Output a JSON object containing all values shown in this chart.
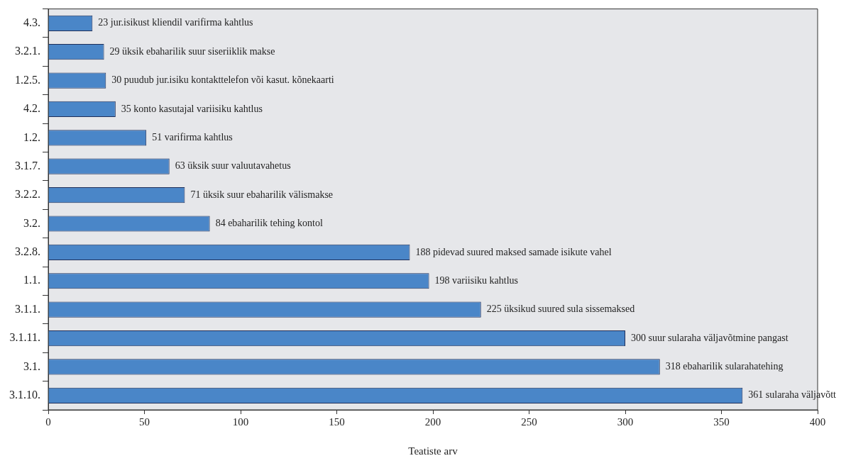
{
  "chart_data": {
    "type": "bar",
    "orientation": "horizontal",
    "xlabel": "Teatiste arv",
    "categories": [
      "4.3.",
      "3.2.1.",
      "1.2.5.",
      "4.2.",
      "1.2.",
      "3.1.7.",
      "3.2.2.",
      "3.2.",
      "3.2.8.",
      "1.1.",
      "3.1.1.",
      "3.1.11.",
      "3.1.",
      "3.1.10."
    ],
    "values": [
      23,
      29,
      30,
      35,
      51,
      63,
      71,
      84,
      188,
      198,
      225,
      300,
      318,
      361
    ],
    "value_labels": [
      "23 jur.isikust kliendil varifirma kahtlus",
      "29 üksik ebaharilik suur siseriiklik makse",
      "30 puudub jur.isiku kontakttelefon või kasut. kõnekaarti",
      "35 konto kasutajal variisiku kahtlus",
      "51 varifirma kahtlus",
      "63 üksik suur valuutavahetus",
      "71 üksik suur ebaharilik välismakse",
      "84 ebaharilik tehing kontol",
      "188 pidevad suured maksed samade isikute vahel",
      "198 variisiku kahtlus",
      "225 üksikud suured sula sissemaksed",
      "300 suur sularaha väljavõtmine pangast",
      "318 ebaharilik sularahatehing",
      "361 sularaha väljavõtt"
    ],
    "color": "#4a86c8",
    "xlim": [
      0,
      400
    ],
    "xticks": [
      0,
      50,
      100,
      150,
      200,
      250,
      300,
      350,
      400
    ]
  }
}
